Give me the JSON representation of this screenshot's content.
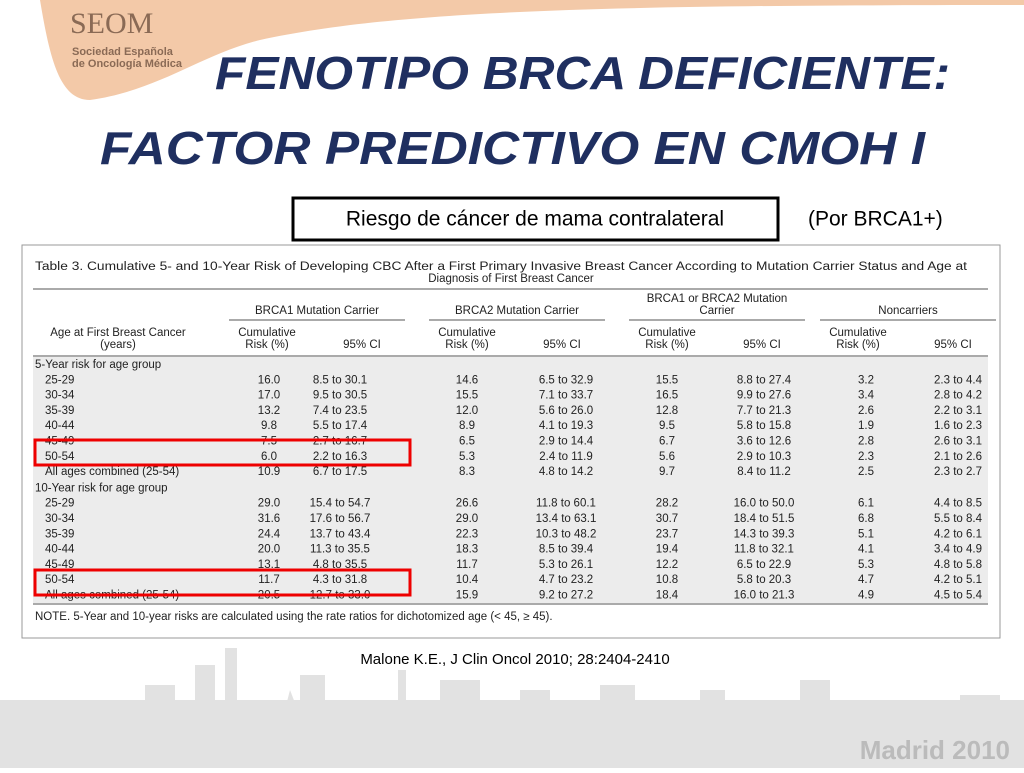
{
  "logo": {
    "name": "SEOM",
    "line1": "Sociedad Española",
    "line2": "de Oncología Médica"
  },
  "title": {
    "line1": "FENOTIPO BRCA DEFICIENTE:",
    "line2": "FACTOR PREDICTIVO EN CMOH I"
  },
  "subtitle": {
    "boxed": "Riesgo de cáncer de mama contralateral",
    "note": "(Por BRCA1+)"
  },
  "table": {
    "caption": [
      "Table 3. Cumulative 5- and 10-Year Risk of Developing CBC After a First Primary Invasive Breast Cancer According to Mutation Carrier Status and Age at",
      "Diagnosis of First Breast Cancer"
    ],
    "age_header": [
      "Age at First Breast Cancer",
      "(years)"
    ],
    "groups": [
      [
        "BRCA1 Mutation Carrier"
      ],
      [
        "BRCA2 Mutation Carrier"
      ],
      [
        "BRCA1 or BRCA2 Mutation",
        "Carrier"
      ],
      [
        "Noncarriers"
      ]
    ],
    "risk_header": [
      "Cumulative",
      "Risk (%)"
    ],
    "ci_header": "95% CI",
    "sections": [
      {
        "label": "5-Year risk for age group",
        "rows": [
          [
            "25-29",
            "16.0",
            "8.5 to 30.1",
            "14.6",
            "6.5 to 32.9",
            "15.5",
            "8.8 to 27.4",
            "3.2",
            "2.3 to 4.4"
          ],
          [
            "30-34",
            "17.0",
            "9.5 to 30.5",
            "15.5",
            "7.1 to 33.7",
            "16.5",
            "9.9 to 27.6",
            "3.4",
            "2.8 to 4.2"
          ],
          [
            "35-39",
            "13.2",
            "7.4 to 23.5",
            "12.0",
            "5.6 to 26.0",
            "12.8",
            "7.7 to 21.3",
            "2.6",
            "2.2 to 3.1"
          ],
          [
            "40-44",
            "9.8",
            "5.5 to 17.4",
            "8.9",
            "4.1 to 19.3",
            "9.5",
            "5.8 to 15.8",
            "1.9",
            "1.6 to 2.3"
          ],
          [
            "45-49",
            "7.5",
            "2.7 to 16.7",
            "6.5",
            "2.9 to 14.4",
            "6.7",
            "3.6 to 12.6",
            "2.8",
            "2.6 to 3.1"
          ],
          [
            "50-54",
            "6.0",
            "2.2 to 16.3",
            "5.3",
            "2.4 to 11.9",
            "5.6",
            "2.9 to 10.3",
            "2.3",
            "2.1 to 2.6"
          ],
          [
            "All ages combined (25-54)",
            "10.9",
            "6.7 to 17.5",
            "8.3",
            "4.8 to 14.2",
            "9.7",
            "8.4 to 11.2",
            "2.5",
            "2.3 to 2.7"
          ]
        ]
      },
      {
        "label": "10-Year risk for age group",
        "rows": [
          [
            "25-29",
            "29.0",
            "15.4 to 54.7",
            "26.6",
            "11.8 to 60.1",
            "28.2",
            "16.0 to 50.0",
            "6.1",
            "4.4 to 8.5"
          ],
          [
            "30-34",
            "31.6",
            "17.6 to 56.7",
            "29.0",
            "13.4 to 63.1",
            "30.7",
            "18.4 to 51.5",
            "6.8",
            "5.5 to 8.4"
          ],
          [
            "35-39",
            "24.4",
            "13.7 to 43.4",
            "22.3",
            "10.3 to 48.2",
            "23.7",
            "14.3 to 39.3",
            "5.1",
            "4.2 to 6.1"
          ],
          [
            "40-44",
            "20.0",
            "11.3 to 35.5",
            "18.3",
            "8.5 to 39.4",
            "19.4",
            "11.8 to 32.1",
            "4.1",
            "3.4 to 4.9"
          ],
          [
            "45-49",
            "13.1",
            "4.8 to 35.5",
            "11.7",
            "5.3 to 26.1",
            "12.2",
            "6.5 to 22.9",
            "5.3",
            "4.8 to 5.8"
          ],
          [
            "50-54",
            "11.7",
            "4.3 to 31.8",
            "10.4",
            "4.7 to 23.2",
            "10.8",
            "5.8 to 20.3",
            "4.7",
            "4.2 to 5.1"
          ],
          [
            "All ages combined (25-54)",
            "20.5",
            "12.7 to 33.0",
            "15.9",
            "9.2 to 27.2",
            "18.4",
            "16.0 to 21.3",
            "4.9",
            "4.5 to 5.4"
          ]
        ]
      }
    ],
    "note": "NOTE. 5-Year and 10-year risks are calculated using the rate ratios for dichotomized age (< 45, ≥ 45)."
  },
  "citation": "Malone K.E., J Clin Oncol  2010; 28:2404-2410",
  "footer": "Madrid 2010"
}
